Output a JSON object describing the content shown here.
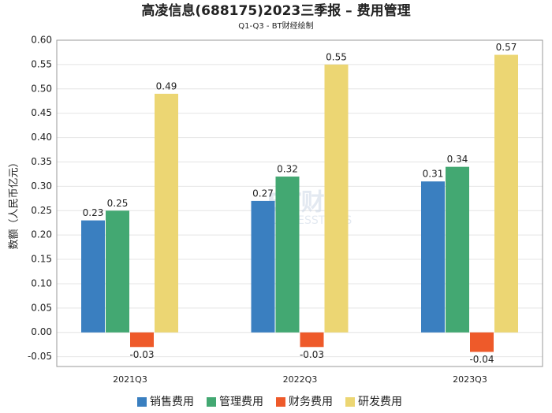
{
  "chart_data": {
    "type": "bar",
    "title": "高凌信息(688175)2023三季报 – 费用管理",
    "subtitle": "Q1-Q3 - BT财经绘制",
    "y_label": "数额（人民币亿元）",
    "watermark": [
      "BT财经",
      "BUSINESSTIMES"
    ],
    "categories": [
      "2021Q3",
      "2022Q3",
      "2023Q3"
    ],
    "series": [
      {
        "name": "销售费用",
        "color": "#3a7fc0",
        "values": [
          0.23,
          0.27,
          0.31
        ]
      },
      {
        "name": "管理费用",
        "color": "#43a872",
        "values": [
          0.25,
          0.32,
          0.34
        ]
      },
      {
        "name": "财务费用",
        "color": "#ee5a2a",
        "values": [
          -0.03,
          -0.03,
          -0.04
        ]
      },
      {
        "name": "研发费用",
        "color": "#ecd673",
        "values": [
          0.49,
          0.55,
          0.57
        ]
      }
    ],
    "ylim": [
      -0.07,
      0.6
    ],
    "yticks": [
      {
        "value": -0.05,
        "label": "-0.05"
      },
      {
        "value": 0,
        "label": "0.00"
      },
      {
        "value": 0.05,
        "label": "0.05"
      },
      {
        "value": 0.1,
        "label": "0.10"
      },
      {
        "value": 0.15,
        "label": "0.15"
      },
      {
        "value": 0.2,
        "label": "0.20"
      },
      {
        "value": 0.25,
        "label": "0.25"
      },
      {
        "value": 0.3,
        "label": "0.30"
      },
      {
        "value": 0.35,
        "label": "0.35"
      },
      {
        "value": 0.4,
        "label": "0.40"
      },
      {
        "value": 0.45,
        "label": "0.45"
      },
      {
        "value": 0.5,
        "label": "0.50"
      },
      {
        "value": 0.55,
        "label": "0.55"
      },
      {
        "value": 0.6,
        "label": "0.60"
      }
    ],
    "grid": true
  }
}
